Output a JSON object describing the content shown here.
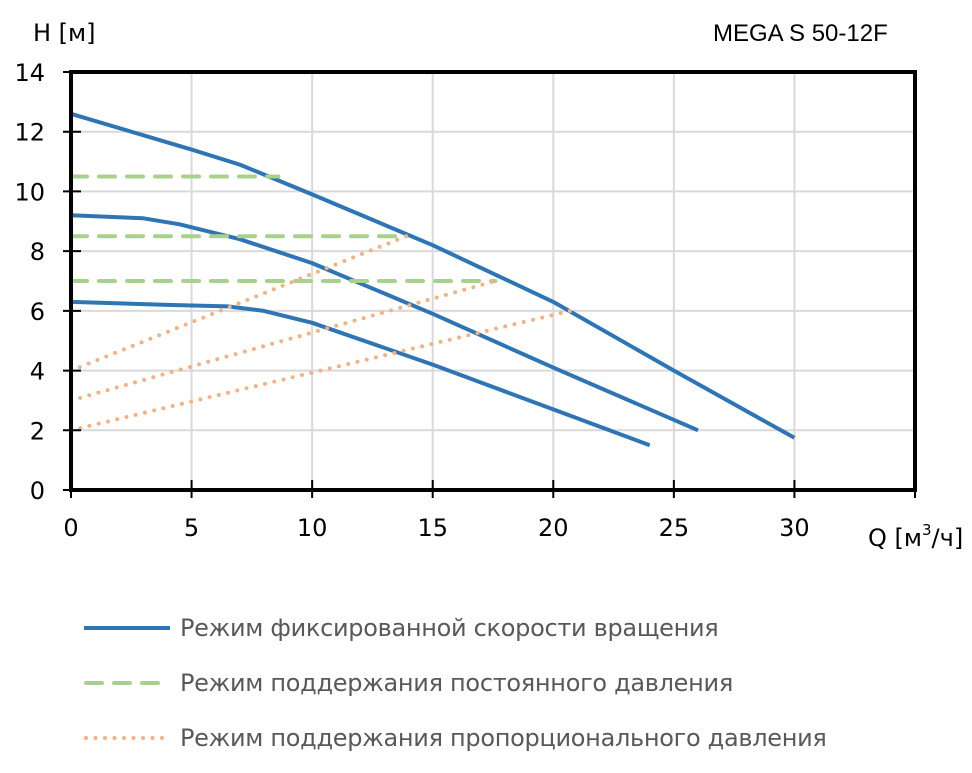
{
  "header": {
    "y_axis_label": "H [м]",
    "title": "MEGA S 50-12F",
    "x_axis_label_prefix": "Q [м",
    "x_axis_label_sup": "3",
    "x_axis_label_suffix": "/ч]"
  },
  "legend": {
    "items": [
      {
        "label": "Режим фиксированной скорости вращения",
        "style": "solid",
        "color": "#2E75B6"
      },
      {
        "label": "Режим поддержания постоянного давления",
        "style": "dashed",
        "color": "#A9D18E"
      },
      {
        "label": "Режим поддержания пропорционального давления",
        "style": "dotted",
        "color": "#F4B183"
      }
    ]
  },
  "chart_data": {
    "type": "line",
    "title": "MEGA S 50-12F",
    "xlabel": "Q [м³/ч]",
    "ylabel": "H [м]",
    "xlim": [
      0,
      35
    ],
    "ylim": [
      0,
      14
    ],
    "x_ticks": [
      0,
      5,
      10,
      15,
      20,
      25,
      30,
      35
    ],
    "x_tick_labels": [
      "0",
      "5",
      "10",
      "15",
      "20",
      "25",
      "30",
      ""
    ],
    "y_ticks": [
      0,
      2,
      4,
      6,
      8,
      10,
      12,
      14
    ],
    "y_tick_labels": [
      "0",
      "2",
      "4",
      "6",
      "8",
      "10",
      "12",
      "14"
    ],
    "grid": true,
    "legend_position": "bottom",
    "series": [
      {
        "name": "Режим фиксированной скорости вращения",
        "group": "fixed-speed",
        "style": "solid",
        "color": "#2E75B6",
        "points": [
          [
            0,
            12.6
          ],
          [
            5,
            11.4
          ],
          [
            7,
            10.9
          ],
          [
            10,
            9.9
          ],
          [
            15,
            8.2
          ],
          [
            20,
            6.3
          ],
          [
            25,
            4.0
          ],
          [
            30,
            1.75
          ]
        ]
      },
      {
        "name": "Режим фиксированной скорости вращения",
        "group": "fixed-speed",
        "style": "solid",
        "color": "#2E75B6",
        "points": [
          [
            0,
            9.2
          ],
          [
            3,
            9.1
          ],
          [
            4.5,
            8.9
          ],
          [
            7,
            8.4
          ],
          [
            10,
            7.6
          ],
          [
            15,
            5.9
          ],
          [
            20,
            4.1
          ],
          [
            26,
            2.0
          ]
        ]
      },
      {
        "name": "Режим фиксированной скорости вращения",
        "group": "fixed-speed",
        "style": "solid",
        "color": "#2E75B6",
        "points": [
          [
            0,
            6.3
          ],
          [
            4,
            6.2
          ],
          [
            6.5,
            6.15
          ],
          [
            8,
            6.0
          ],
          [
            10,
            5.6
          ],
          [
            15,
            4.2
          ],
          [
            20,
            2.7
          ],
          [
            24,
            1.5
          ]
        ]
      },
      {
        "name": "Режим поддержания постоянного давления",
        "group": "constant-pressure",
        "style": "dashed",
        "color": "#A9D18E",
        "points": [
          [
            0,
            10.5
          ],
          [
            8.6,
            10.5
          ]
        ]
      },
      {
        "name": "Режим поддержания постоянного давления",
        "group": "constant-pressure",
        "style": "dashed",
        "color": "#A9D18E",
        "points": [
          [
            0,
            8.5
          ],
          [
            13.9,
            8.5
          ]
        ]
      },
      {
        "name": "Режим поддержания постоянного давления",
        "group": "constant-pressure",
        "style": "dashed",
        "color": "#A9D18E",
        "points": [
          [
            0,
            7.0
          ],
          [
            17.6,
            7.0
          ]
        ]
      },
      {
        "name": "Режим поддержания пропорционального давления",
        "group": "proportional-pressure",
        "style": "dotted",
        "color": "#F4B183",
        "points": [
          [
            0,
            4.0
          ],
          [
            13.9,
            8.5
          ]
        ]
      },
      {
        "name": "Режим поддержания пропорционального давления",
        "group": "proportional-pressure",
        "style": "dotted",
        "color": "#F4B183",
        "points": [
          [
            0,
            3.0
          ],
          [
            17.6,
            7.0
          ]
        ]
      },
      {
        "name": "Режим поддержания пропорционального давления",
        "group": "proportional-pressure",
        "style": "dotted",
        "color": "#F4B183",
        "points": [
          [
            0,
            2.0
          ],
          [
            20.7,
            6.0
          ]
        ]
      }
    ]
  }
}
